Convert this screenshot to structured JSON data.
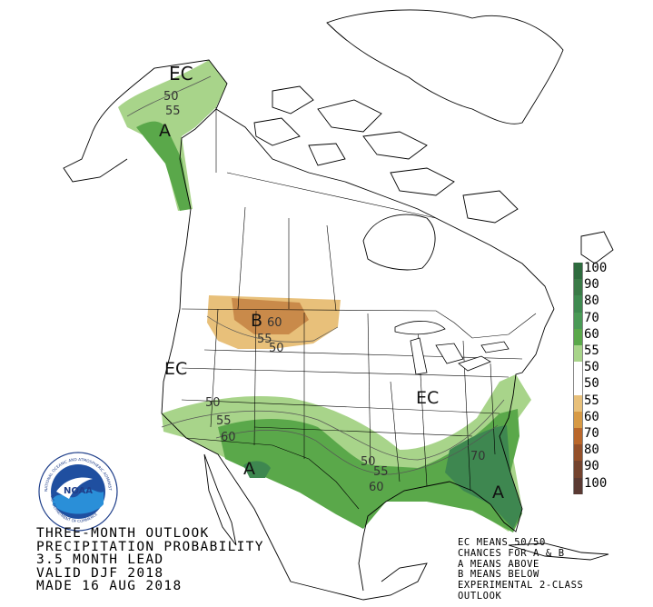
{
  "title": {
    "line1": "THREE-MONTH OUTLOOK",
    "line2": "PRECIPITATION PROBABILITY",
    "line3": "3.5 MONTH LEAD",
    "line4": "VALID DJF 2018",
    "line5": "MADE 16 AUG 2018"
  },
  "notes": {
    "line1": "EC MEANS 50/50",
    "line2": "CHANCES FOR A & B",
    "line3": "A MEANS ABOVE",
    "line4": "B MEANS BELOW",
    "line5": "EXPERIMENTAL 2-CLASS",
    "line6": "OUTLOOK"
  },
  "legend": {
    "entries": [
      {
        "label": "100",
        "color": "#2e6b3e"
      },
      {
        "label": "90",
        "color": "#3a7a47"
      },
      {
        "label": "80",
        "color": "#3f8a50"
      },
      {
        "label": "70",
        "color": "#4a9a56"
      },
      {
        "label": "60",
        "color": "#5aa84a"
      },
      {
        "label": "55",
        "color": "#a8d48a"
      },
      {
        "label": "50",
        "color": "#ffffff"
      },
      {
        "label": "50",
        "color": "#ffffff"
      },
      {
        "label": "55",
        "color": "#e8c07a"
      },
      {
        "label": "60",
        "color": "#d79a45"
      },
      {
        "label": "70",
        "color": "#b9672b"
      },
      {
        "label": "80",
        "color": "#94502a"
      },
      {
        "label": "90",
        "color": "#73432e"
      },
      {
        "label": "100",
        "color": "#5a3a33"
      }
    ]
  },
  "map": {
    "labels": {
      "ec_alaska": "EC",
      "a_alaska": "A",
      "ec_west": "EC",
      "ec_east": "EC",
      "b_north": "B",
      "a_southwest": "A",
      "a_southeast": "A"
    },
    "contours": {
      "ak_50": "50",
      "ak_55": "55",
      "n_60": "60",
      "n_55": "55",
      "n_50": "50",
      "sw_50": "50",
      "sw_55": "55",
      "sw_60": "60",
      "gulf_50": "50",
      "gulf_55": "55",
      "gulf_60": "60",
      "se_70": "70"
    },
    "colors": {
      "above_55": "#a8d48a",
      "above_60": "#5aa84a",
      "above_70": "#3e8750",
      "below_55": "#e8c07a",
      "below_60": "#c98a4a"
    }
  },
  "logo": {
    "text": "NOAA",
    "ring_text": "NATIONAL OCEANIC AND ATMOSPHERIC ADMINISTRATION",
    "ring_text_bottom": "U.S. DEPARTMENT OF COMMERCE"
  }
}
